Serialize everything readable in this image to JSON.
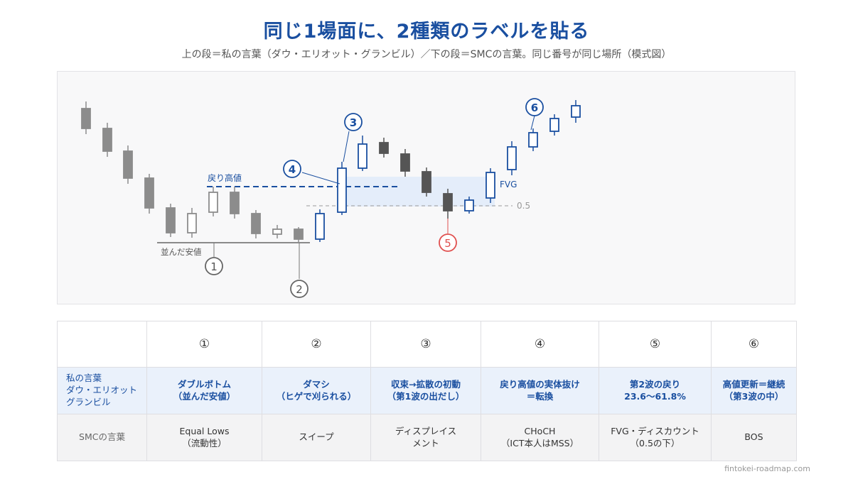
{
  "header": {
    "title": "同じ1場面に、2種類のラベルを貼る",
    "subtitle": "上の段＝私の言葉（ダウ・エリオット・グランビル）／下の段＝SMCの言葉。同じ番号が同じ場所（模式図）"
  },
  "chart": {
    "labels": {
      "equal_lows": "並んだ安値",
      "pullback_high": "戻り高値",
      "fvg": "FVG",
      "fib_half": "0.5"
    },
    "markers": [
      "①",
      "②",
      "③",
      "④",
      "⑤",
      "⑥"
    ],
    "markers_plain": [
      "1",
      "2",
      "3",
      "4",
      "5",
      "6"
    ]
  },
  "table": {
    "columns": [
      "",
      "①",
      "②",
      "③",
      "④",
      "⑤",
      "⑥"
    ],
    "rows": [
      {
        "header": "私の言葉\nダウ・エリオット\nグランビル",
        "cells": [
          "ダブルボトム\n（並んだ安値）",
          "ダマシ\n（ヒゲで刈られる）",
          "収束→拡散の初動\n（第1波の出だし）",
          "戻り高値の実体抜け\n＝転換",
          "第2波の戻り\n23.6〜61.8%",
          "高値更新＝継続\n（第3波の中）"
        ]
      },
      {
        "header": "SMCの言葉",
        "cells": [
          "Equal Lows\n（流動性）",
          "スイープ",
          "ディスプレイス\nメント",
          "CHoCH\n（ICT本人はMSS）",
          "FVG・ディスカウント\n（0.5の下）",
          "BOS"
        ]
      }
    ]
  },
  "footer": "fintokei-roadmap.com",
  "colors": {
    "accent_blue": "#1a4fa0",
    "gray_candle": "#8c8c8c",
    "dark_candle": "#555555",
    "red_marker": "#e0504f"
  }
}
